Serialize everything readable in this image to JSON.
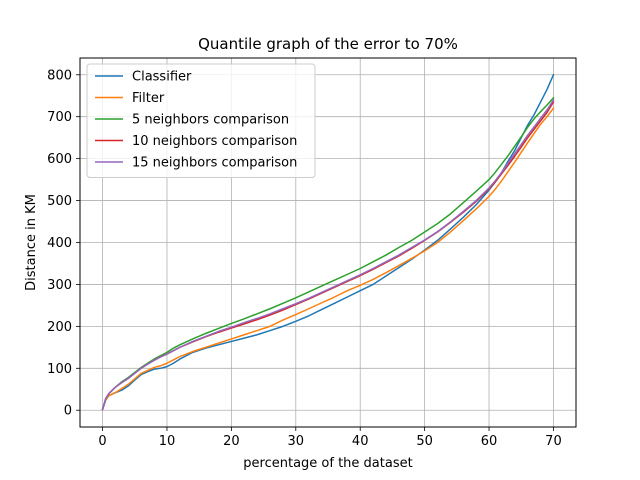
{
  "chart_data": {
    "type": "line",
    "title": "Quantile graph of the error to 70%",
    "xlabel": "percentage of the dataset",
    "ylabel": "Distance in KM",
    "xlim": [
      -3.5,
      73.5
    ],
    "ylim": [
      -40,
      840
    ],
    "xticks": [
      0,
      10,
      20,
      30,
      40,
      50,
      60,
      70
    ],
    "yticks": [
      0,
      100,
      200,
      300,
      400,
      500,
      600,
      700,
      800
    ],
    "grid": true,
    "legend_position": "top-left",
    "series": [
      {
        "name": "Classifier",
        "color": "#1f77b4",
        "x": [
          0,
          0.5,
          1,
          2,
          3,
          4,
          5,
          6,
          7,
          8,
          9,
          10,
          11,
          12,
          14,
          16,
          18,
          20,
          22,
          24,
          26,
          28,
          30,
          32,
          34,
          36,
          38,
          40,
          42,
          44,
          46,
          48,
          50,
          52,
          54,
          56,
          58,
          60,
          61,
          62,
          63,
          64,
          65,
          66,
          67,
          68,
          69,
          70
        ],
        "y": [
          2,
          25,
          35,
          42,
          48,
          58,
          72,
          85,
          92,
          98,
          100,
          104,
          112,
          122,
          138,
          148,
          156,
          164,
          172,
          180,
          190,
          200,
          212,
          225,
          240,
          255,
          270,
          285,
          300,
          320,
          340,
          360,
          382,
          405,
          432,
          460,
          490,
          525,
          545,
          568,
          595,
          620,
          650,
          680,
          705,
          735,
          765,
          800
        ]
      },
      {
        "name": "Filter",
        "color": "#ff7f0e",
        "x": [
          0,
          0.5,
          1,
          2,
          3,
          4,
          5,
          6,
          7,
          8,
          9,
          10,
          11,
          12,
          14,
          16,
          18,
          20,
          22,
          24,
          26,
          28,
          30,
          32,
          34,
          36,
          38,
          40,
          42,
          44,
          46,
          48,
          50,
          52,
          54,
          56,
          58,
          60,
          61,
          62,
          63,
          64,
          65,
          66,
          67,
          68,
          69,
          70
        ],
        "y": [
          2,
          25,
          35,
          42,
          52,
          62,
          75,
          88,
          95,
          102,
          106,
          112,
          120,
          128,
          140,
          150,
          160,
          170,
          180,
          190,
          200,
          215,
          228,
          242,
          256,
          270,
          285,
          298,
          312,
          328,
          345,
          362,
          380,
          400,
          425,
          452,
          480,
          510,
          528,
          548,
          570,
          592,
          615,
          638,
          660,
          682,
          700,
          720
        ]
      },
      {
        "name": "5 neighbors comparison",
        "color": "#2ca02c",
        "x": [
          0,
          0.5,
          1,
          2,
          3,
          4,
          5,
          6,
          7,
          8,
          9,
          10,
          11,
          12,
          14,
          16,
          18,
          20,
          22,
          24,
          26,
          28,
          30,
          32,
          34,
          36,
          38,
          40,
          42,
          44,
          46,
          48,
          50,
          52,
          54,
          56,
          58,
          60,
          61,
          62,
          63,
          64,
          65,
          66,
          67,
          68,
          69,
          70
        ],
        "y": [
          2,
          28,
          40,
          55,
          68,
          78,
          90,
          102,
          112,
          122,
          130,
          138,
          148,
          156,
          170,
          183,
          195,
          207,
          218,
          230,
          242,
          255,
          268,
          282,
          296,
          310,
          324,
          338,
          354,
          370,
          388,
          405,
          425,
          445,
          468,
          495,
          522,
          550,
          568,
          588,
          608,
          630,
          652,
          675,
          695,
          712,
          728,
          745
        ]
      },
      {
        "name": "10 neighbors comparison",
        "color": "#d62728",
        "x": [
          0,
          0.5,
          1,
          2,
          3,
          4,
          5,
          6,
          7,
          8,
          9,
          10,
          11,
          12,
          14,
          16,
          18,
          20,
          22,
          24,
          26,
          28,
          30,
          32,
          34,
          36,
          38,
          40,
          42,
          44,
          46,
          48,
          50,
          52,
          54,
          56,
          58,
          60,
          61,
          62,
          63,
          64,
          65,
          66,
          67,
          68,
          69,
          70
        ],
        "y": [
          2,
          28,
          40,
          55,
          66,
          76,
          88,
          100,
          110,
          119,
          127,
          134,
          142,
          150,
          163,
          175,
          186,
          196,
          206,
          216,
          227,
          239,
          252,
          265,
          279,
          293,
          307,
          321,
          336,
          352,
          368,
          386,
          405,
          425,
          448,
          472,
          498,
          528,
          545,
          565,
          585,
          606,
          628,
          650,
          670,
          690,
          710,
          735
        ]
      },
      {
        "name": "15 neighbors comparison",
        "color": "#9467bd",
        "x": [
          0,
          0.5,
          1,
          2,
          3,
          4,
          5,
          6,
          7,
          8,
          9,
          10,
          11,
          12,
          14,
          16,
          18,
          20,
          22,
          24,
          26,
          28,
          30,
          32,
          34,
          36,
          38,
          40,
          42,
          44,
          46,
          48,
          50,
          52,
          54,
          56,
          58,
          60,
          61,
          62,
          63,
          64,
          65,
          66,
          67,
          68,
          69,
          70
        ],
        "y": [
          2,
          28,
          40,
          55,
          66,
          76,
          88,
          100,
          110,
          119,
          127,
          134,
          142,
          150,
          164,
          176,
          188,
          198,
          209,
          219,
          230,
          242,
          254,
          267,
          281,
          295,
          309,
          323,
          338,
          354,
          370,
          388,
          406,
          426,
          449,
          474,
          500,
          530,
          548,
          568,
          590,
          612,
          634,
          656,
          676,
          696,
          716,
          740
        ]
      }
    ]
  }
}
